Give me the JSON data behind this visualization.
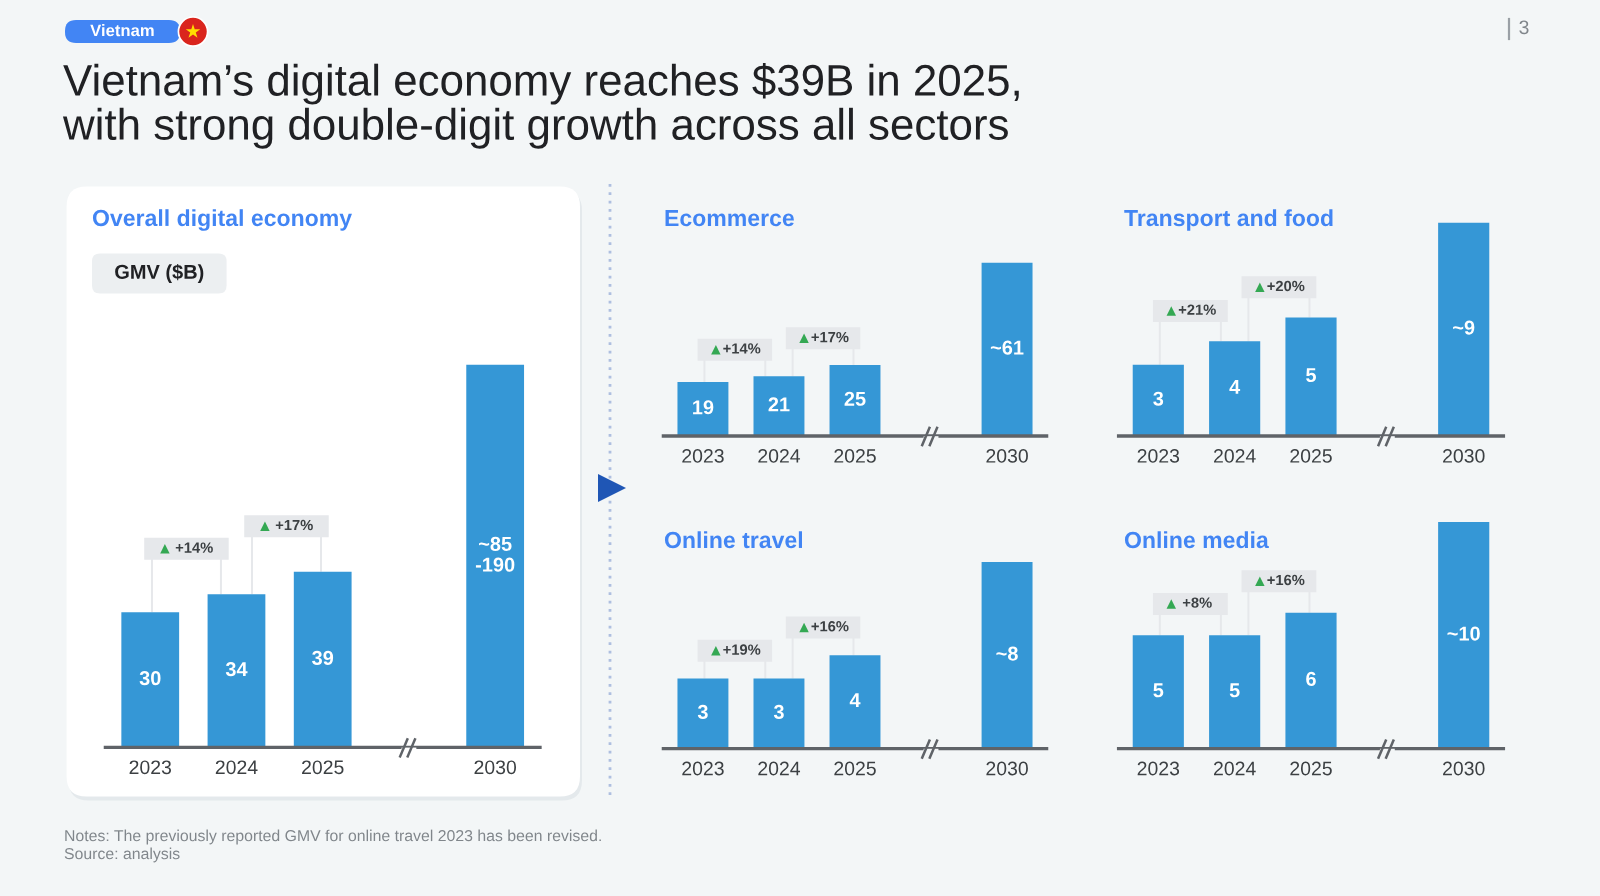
{
  "chart_data": [
    {
      "type": "other",
      "title": "Vietnam’s digital economy reaches $39B in 2025,\nwith strong double-digit growth across all sectors",
      "annotations": [
        "Vietnam",
        "3"
      ]
    },
    {
      "type": "bar",
      "title": "Overall digital economy",
      "ylabel": "GMV ($B)",
      "categories": [
        "2023",
        "2024",
        "2025",
        "2030"
      ],
      "values": [
        30,
        34,
        39,
        85
      ],
      "value_labels": [
        "30",
        "34",
        "39",
        "~85\n-190"
      ],
      "color": "#3597d6",
      "annotations": [
        "+14%",
        "+17%"
      ],
      "tick_labels": "x"
    },
    {
      "type": "bar",
      "title": "Ecommerce",
      "categories": [
        "2023",
        "2024",
        "2025",
        "2030"
      ],
      "values": [
        19,
        21,
        25,
        61
      ],
      "value_labels": [
        "19",
        "21",
        "25",
        "~61"
      ],
      "color": "#3597d6",
      "annotations": [
        "+14%",
        "+17%"
      ],
      "tick_labels": "x"
    },
    {
      "type": "bar",
      "title": "Transport and food",
      "categories": [
        "2023",
        "2024",
        "2025",
        "2030"
      ],
      "values": [
        3,
        4,
        5,
        9
      ],
      "value_labels": [
        "3",
        "4",
        "5",
        "~9"
      ],
      "color": "#3597d6",
      "annotations": [
        "+21%",
        "+20%"
      ],
      "tick_labels": "x"
    },
    {
      "type": "bar",
      "title": "Online travel",
      "categories": [
        "2023",
        "2024",
        "2025",
        "2030"
      ],
      "values": [
        3,
        3,
        4,
        8
      ],
      "value_labels": [
        "3",
        "3",
        "4",
        "~8"
      ],
      "color": "#3597d6",
      "annotations": [
        "+19%",
        "+16%"
      ],
      "tick_labels": "x"
    },
    {
      "type": "bar",
      "title": "Online media",
      "categories": [
        "2023",
        "2024",
        "2025",
        "2030"
      ],
      "values": [
        5,
        5,
        6,
        10
      ],
      "value_labels": [
        "5",
        "5",
        "6",
        "~10"
      ],
      "color": "#3597d6",
      "annotations": [
        "+8%",
        "+16%"
      ],
      "tick_labels": "x"
    },
    {
      "type": "other",
      "annotations": [
        "Notes: The previously reported GMV for online travel 2023 has been revised.",
        "Source: analysis"
      ]
    }
  ]
}
